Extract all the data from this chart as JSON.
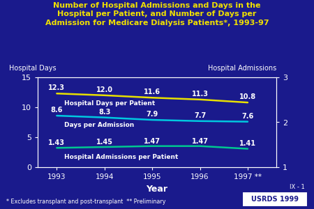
{
  "title_line1": "Number of Hospital Admissions and Days in the",
  "title_line2": "Hospital per Patient, and Number of Days per",
  "title_line3": "Admission for Medicare Dialysis Patients*, 1993-97",
  "years": [
    1993,
    1994,
    1995,
    1996,
    1997
  ],
  "year_labels": [
    "1993",
    "1994",
    "1995",
    "1996",
    "1997 **"
  ],
  "hospital_days_per_patient": [
    12.3,
    12.0,
    11.6,
    11.3,
    10.8
  ],
  "days_per_admission": [
    8.6,
    8.3,
    7.9,
    7.7,
    7.6
  ],
  "admissions_per_patient": [
    1.43,
    1.45,
    1.47,
    1.47,
    1.41
  ],
  "color_hosp_days": "#e8e000",
  "color_days_adm": "#00c8e0",
  "color_adm_patient": "#00c890",
  "bg_color": "#1a1a8c",
  "plot_bg_color": "#1a1a8c",
  "title_color": "#f0e000",
  "text_color": "#ffffff",
  "ylabel_left": "Hospital Days",
  "ylabel_right": "Hospital Admissions",
  "xlabel": "Year",
  "ylim_left": [
    0,
    15
  ],
  "ylim_right": [
    1,
    3
  ],
  "yticks_left": [
    0,
    5,
    10,
    15
  ],
  "yticks_right": [
    1,
    2,
    3
  ],
  "label_hospital_days": "Hospital Days per Patient",
  "label_days_admission": "Days per Admission",
  "label_admissions": "Hospital Admissions per Patient",
  "footnote": "* Excludes transplant and post-transplant  ** Preliminary",
  "source": "USRDS 1999",
  "source_id": "IX - 1"
}
